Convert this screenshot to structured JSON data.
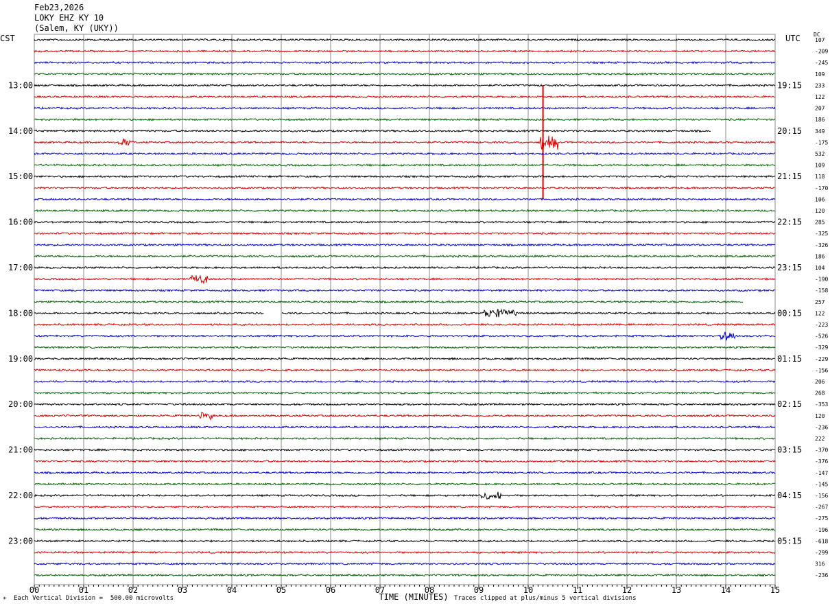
{
  "header": {
    "date": "Feb23,2026",
    "station": "LOKY EHZ KY 10",
    "location": "(Salem, KY (UKY))"
  },
  "left_tz": "CST",
  "right_tz": "UTC",
  "dc_label": "DC",
  "footer": {
    "scale": "Each Vertical Division =  500.00 microvolts",
    "clip": "Traces clipped at plus/minus 5 vertical divisions",
    "corner_mark": "*"
  },
  "colors": {
    "trace_cycle": [
      "#000000",
      "#e00000",
      "#0000d0",
      "#006000"
    ],
    "grid": "#888888"
  },
  "chart_data": {
    "type": "line",
    "xlabel": "TIME (MINUTES)",
    "xlim": [
      0,
      15
    ],
    "x_ticks": [
      "00",
      "01",
      "02",
      "03",
      "04",
      "05",
      "06",
      "07",
      "08",
      "09",
      "10",
      "11",
      "12",
      "13",
      "14",
      "15"
    ],
    "row_minutes": 15,
    "rows_per_hour": 4,
    "left_hour_labels": [
      "13:00",
      "14:00",
      "15:00",
      "16:00",
      "17:00",
      "18:00",
      "19:00",
      "20:00",
      "21:00",
      "22:00",
      "23:00"
    ],
    "right_hour_labels": [
      "19:15",
      "20:15",
      "21:15",
      "22:15",
      "23:15",
      "00:15",
      "01:15",
      "02:15",
      "03:15",
      "04:15",
      "05:15"
    ],
    "dc_offsets": [
      "107",
      "-209",
      "-245",
      "109",
      "233",
      "122",
      "207",
      "186",
      "349",
      "-175",
      "532",
      "109",
      "118",
      "-170",
      "106",
      "120",
      "285",
      "-325",
      "-326",
      "186",
      "104",
      "-190",
      "-158",
      "257",
      "122",
      "-223",
      "-526",
      "-329",
      "-229",
      "-156",
      "206",
      "268",
      "-353",
      "120",
      "-236",
      "222",
      "-370",
      "-376",
      "-147",
      "-145",
      "-156",
      "-267",
      "-275",
      "-196",
      "-618",
      "-299",
      "316",
      "-236"
    ],
    "events": [
      {
        "row": 9,
        "minute_start": 1.7,
        "minute_end": 2.0,
        "amplitude": "medium"
      },
      {
        "row": 9,
        "minute_start": 10.25,
        "minute_end": 10.6,
        "amplitude": "large"
      },
      {
        "row": 21,
        "minute_start": 3.15,
        "minute_end": 3.5,
        "amplitude": "medium"
      },
      {
        "row": 24,
        "minute_start": 9.1,
        "minute_end": 9.75,
        "amplitude": "medium"
      },
      {
        "row": 26,
        "minute_start": 13.9,
        "minute_end": 14.2,
        "amplitude": "medium"
      },
      {
        "row": 33,
        "minute_start": 3.35,
        "minute_end": 3.65,
        "amplitude": "medium"
      },
      {
        "row": 40,
        "minute_start": 9.05,
        "minute_end": 9.45,
        "amplitude": "medium"
      }
    ],
    "gaps": [
      {
        "row": 24,
        "minute_start": 4.65,
        "minute_end": 5.0
      },
      {
        "row": 23,
        "minute_start": 14.35,
        "minute_end": 15.0
      },
      {
        "row": 8,
        "minute_start": 13.7,
        "minute_end": 15.0
      }
    ]
  }
}
